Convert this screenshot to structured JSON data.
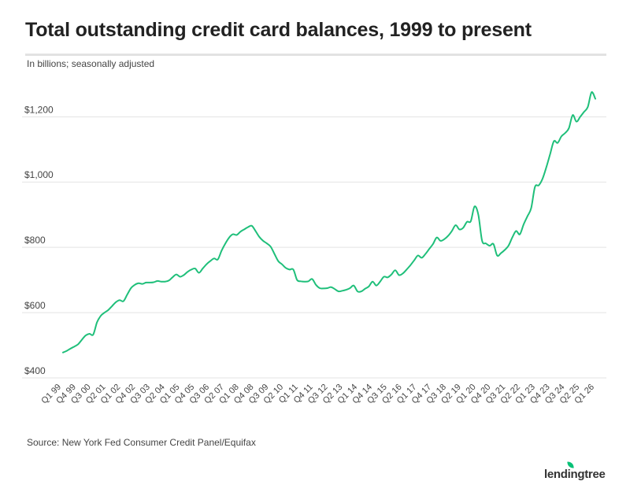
{
  "header": {
    "title": "Total outstanding credit card balances, 1999 to present",
    "subtitle": "In billions; seasonally adjusted"
  },
  "footer": {
    "source": "Source: New York Fed Consumer Credit Panel/Equifax",
    "brand": "lendingtree"
  },
  "colors": {
    "line": "#1fbf7a",
    "grid": "#e3e3e3",
    "brand_leaf": "#08c177"
  },
  "icons": {
    "brand_mark": "leaf-icon"
  },
  "chart_data": {
    "type": "line",
    "title": "Total outstanding credit card balances, 1999 to present",
    "subtitle": "In billions; seasonally adjusted",
    "ylim": [
      400,
      1280
    ],
    "y_ticks": [
      {
        "value": 400,
        "label": "$400"
      },
      {
        "value": 600,
        "label": "$600"
      },
      {
        "value": 800,
        "label": "$800"
      },
      {
        "value": 1000,
        "label": "$1,000"
      },
      {
        "value": 1200,
        "label": "$1,200"
      }
    ],
    "x_tick_labels": [
      "Q1 99",
      "Q4 99",
      "Q3 00",
      "Q2 01",
      "Q1 02",
      "Q4 02",
      "Q3 03",
      "Q2 04",
      "Q1 05",
      "Q4 05",
      "Q3 06",
      "Q2 07",
      "Q1 08",
      "Q4 08",
      "Q3 09",
      "Q2 10",
      "Q1 11",
      "Q4 11",
      "Q3 12",
      "Q2 13",
      "Q1 14",
      "Q4 14",
      "Q3 15",
      "Q2 16",
      "Q1 17",
      "Q4 17",
      "Q3 18",
      "Q2 19",
      "Q1 20",
      "Q4 20",
      "Q3 21",
      "Q2 22",
      "Q1 23",
      "Q4 23",
      "Q3 24",
      "Q2 25",
      "Q1 26"
    ],
    "grid": true,
    "legend": "none",
    "series": [
      {
        "values": [
          478,
          483,
          490,
          496,
          503,
          517,
          530,
          535,
          533,
          570,
          590,
          600,
          608,
          620,
          632,
          638,
          635,
          655,
          675,
          685,
          690,
          688,
          692,
          692,
          693,
          697,
          695,
          695,
          698,
          708,
          717,
          710,
          715,
          725,
          732,
          735,
          722,
          735,
          748,
          758,
          766,
          763,
          790,
          812,
          830,
          840,
          838,
          848,
          855,
          862,
          866,
          850,
          832,
          820,
          812,
          802,
          780,
          758,
          748,
          737,
          732,
          732,
          700,
          696,
          695,
          696,
          703,
          685,
          675,
          674,
          675,
          678,
          672,
          665,
          667,
          670,
          675,
          683,
          665,
          665,
          673,
          680,
          695,
          683,
          695,
          710,
          708,
          717,
          730,
          715,
          720,
          732,
          745,
          760,
          775,
          768,
          780,
          795,
          810,
          830,
          820,
          825,
          835,
          850,
          868,
          855,
          860,
          878,
          880,
          925,
          900,
          820,
          812,
          805,
          810,
          775,
          782,
          792,
          805,
          830,
          850,
          840,
          870,
          895,
          920,
          985,
          990,
          1010,
          1045,
          1085,
          1125,
          1120,
          1140,
          1150,
          1165,
          1205,
          1185,
          1200,
          1215,
          1230,
          1275,
          1255
        ]
      }
    ]
  }
}
